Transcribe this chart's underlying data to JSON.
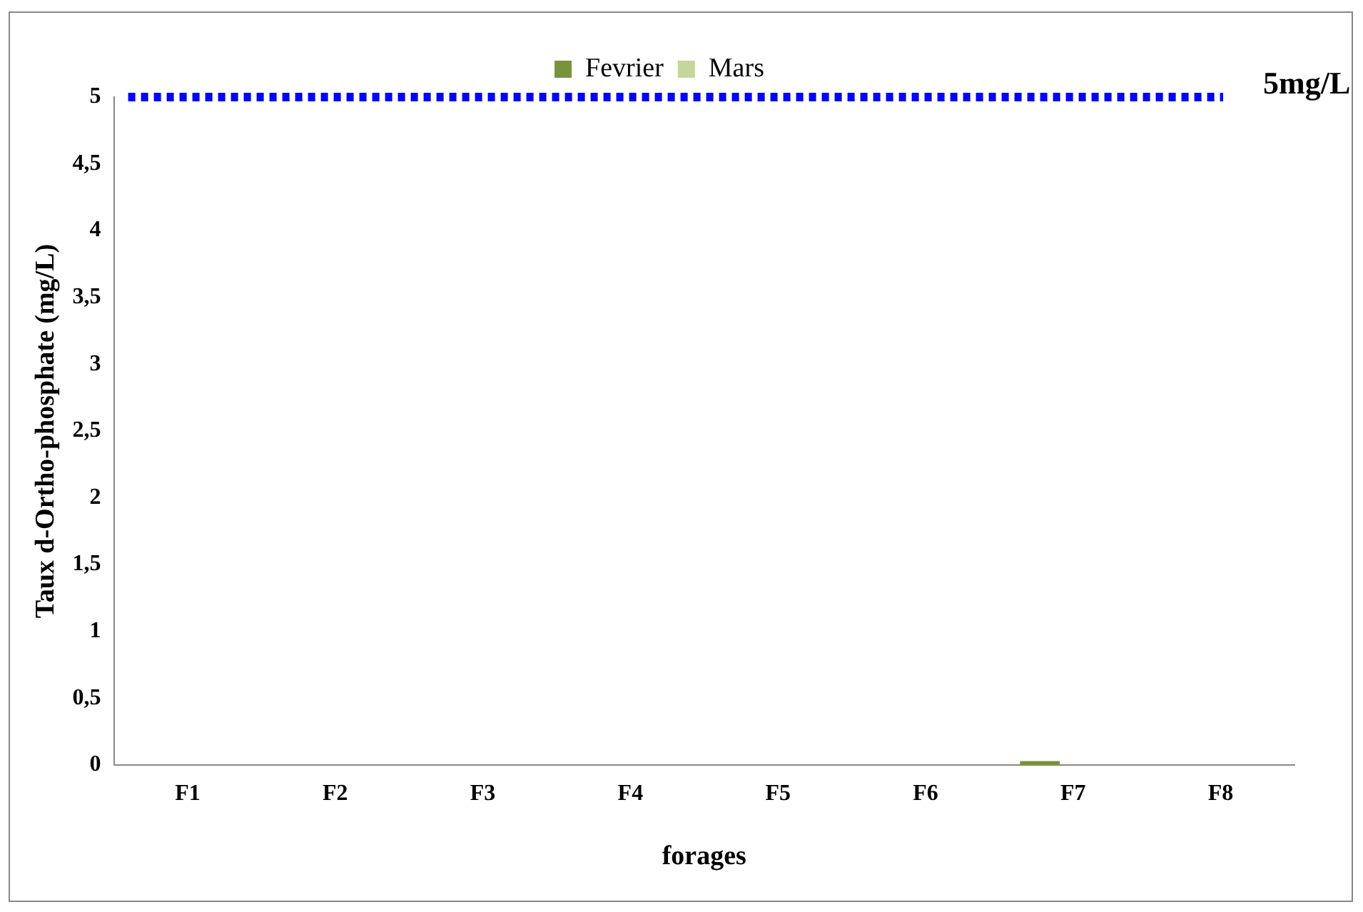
{
  "chart_data": {
    "type": "bar",
    "xlabel": "forages",
    "ylabel": "Taux d-Ortho-phosphate (mg/L)",
    "categories": [
      "F1",
      "F2",
      "F3",
      "F4",
      "F5",
      "F6",
      "F7",
      "F8"
    ],
    "series": [
      {
        "name": "Fevrier",
        "color": "#77933c",
        "values": [
          0,
          0,
          0,
          0,
          0,
          0,
          0.03,
          0
        ]
      },
      {
        "name": "Mars",
        "color": "#c3d69b",
        "values": [
          0,
          0,
          0,
          0,
          0,
          0,
          0,
          0
        ]
      }
    ],
    "ylim": [
      0,
      5
    ],
    "yticks": [
      0,
      {
        "value": 0.5,
        "label": "0,5"
      },
      1,
      {
        "value": 1.5,
        "label": "1,5"
      },
      2,
      {
        "value": 2.5,
        "label": "2,5"
      },
      3,
      {
        "value": 3.5,
        "label": "3,5"
      },
      4,
      {
        "value": 4.5,
        "label": "4,5"
      },
      5
    ],
    "grid": false,
    "legend": "top",
    "ref_lines": [
      {
        "axis": "y",
        "value": 5,
        "label": "5mg/L",
        "color": "#0000ff",
        "line_style": "dotted"
      }
    ]
  }
}
